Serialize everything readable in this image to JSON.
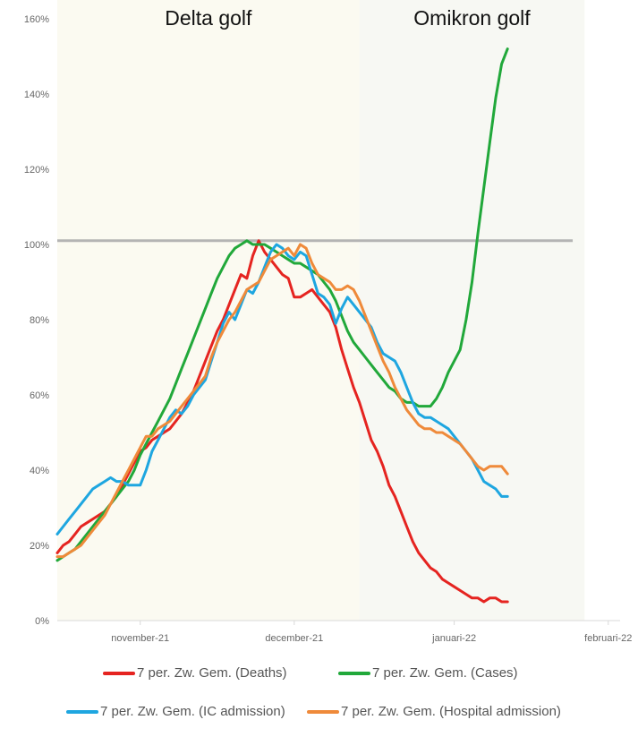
{
  "chart_data": {
    "type": "line",
    "regions": [
      {
        "label": "Delta golf",
        "x_start": 0,
        "x_end": 51,
        "color": "#fbfaf1"
      },
      {
        "label": "Omikron golf",
        "x_start": 51,
        "x_end": 89,
        "color": "#f7f8f3"
      }
    ],
    "x_ticks": [
      {
        "x": 14,
        "label": "november-21"
      },
      {
        "x": 40,
        "label": "december-21"
      },
      {
        "x": 67,
        "label": "januari-22"
      },
      {
        "x": 93,
        "label": "februari-22"
      }
    ],
    "x_range": [
      0,
      95
    ],
    "ylim": [
      0,
      165
    ],
    "y_ticks": [
      {
        "value": 0,
        "label": "0%"
      },
      {
        "value": 20,
        "label": "20%"
      },
      {
        "value": 40,
        "label": "40%"
      },
      {
        "value": 60,
        "label": "60%"
      },
      {
        "value": 80,
        "label": "80%"
      },
      {
        "value": 100,
        "label": "100%"
      },
      {
        "value": 120,
        "label": "120%"
      },
      {
        "value": 140,
        "label": "140%"
      },
      {
        "value": 160,
        "label": "160%"
      }
    ],
    "reference_line": {
      "y": 101,
      "x_start": 0,
      "x_end": 87,
      "color": "#b4b4b4"
    },
    "series": [
      {
        "name": "7 per. Zw. Gem. (Deaths)",
        "color": "#e52420",
        "points": [
          [
            0,
            18
          ],
          [
            1,
            20
          ],
          [
            2,
            21
          ],
          [
            3,
            23
          ],
          [
            4,
            25
          ],
          [
            5,
            26
          ],
          [
            6,
            27
          ],
          [
            7,
            28
          ],
          [
            8,
            29
          ],
          [
            9,
            31
          ],
          [
            10,
            33
          ],
          [
            11,
            36
          ],
          [
            12,
            39
          ],
          [
            13,
            42
          ],
          [
            14,
            45
          ],
          [
            15,
            46
          ],
          [
            16,
            48
          ],
          [
            17,
            49
          ],
          [
            18,
            50
          ],
          [
            19,
            51
          ],
          [
            20,
            53
          ],
          [
            21,
            55
          ],
          [
            22,
            58
          ],
          [
            23,
            61
          ],
          [
            24,
            65
          ],
          [
            25,
            69
          ],
          [
            26,
            73
          ],
          [
            27,
            77
          ],
          [
            28,
            80
          ],
          [
            29,
            84
          ],
          [
            30,
            88
          ],
          [
            31,
            92
          ],
          [
            32,
            91
          ],
          [
            33,
            97
          ],
          [
            34,
            101
          ],
          [
            35,
            98
          ],
          [
            36,
            96
          ],
          [
            37,
            94
          ],
          [
            38,
            92
          ],
          [
            39,
            91
          ],
          [
            40,
            86
          ],
          [
            41,
            86
          ],
          [
            42,
            87
          ],
          [
            43,
            88
          ],
          [
            44,
            86
          ],
          [
            45,
            84
          ],
          [
            46,
            82
          ],
          [
            47,
            78
          ],
          [
            48,
            72
          ],
          [
            49,
            67
          ],
          [
            50,
            62
          ],
          [
            51,
            58
          ],
          [
            52,
            53
          ],
          [
            53,
            48
          ],
          [
            54,
            45
          ],
          [
            55,
            41
          ],
          [
            56,
            36
          ],
          [
            57,
            33
          ],
          [
            58,
            29
          ],
          [
            59,
            25
          ],
          [
            60,
            21
          ],
          [
            61,
            18
          ],
          [
            62,
            16
          ],
          [
            63,
            14
          ],
          [
            64,
            13
          ],
          [
            65,
            11
          ],
          [
            66,
            10
          ],
          [
            67,
            9
          ],
          [
            68,
            8
          ],
          [
            69,
            7
          ],
          [
            70,
            6
          ],
          [
            71,
            6
          ],
          [
            72,
            5
          ],
          [
            73,
            6
          ],
          [
            74,
            6
          ],
          [
            75,
            5
          ],
          [
            76,
            5
          ]
        ]
      },
      {
        "name": "7 per. Zw. Gem. (Cases)",
        "color": "#21a83a",
        "points": [
          [
            0,
            16
          ],
          [
            1,
            17
          ],
          [
            2,
            18
          ],
          [
            3,
            19
          ],
          [
            4,
            21
          ],
          [
            5,
            23
          ],
          [
            6,
            25
          ],
          [
            7,
            27
          ],
          [
            8,
            29
          ],
          [
            9,
            31
          ],
          [
            10,
            33
          ],
          [
            11,
            35
          ],
          [
            12,
            37
          ],
          [
            13,
            40
          ],
          [
            14,
            44
          ],
          [
            15,
            47
          ],
          [
            16,
            50
          ],
          [
            17,
            53
          ],
          [
            18,
            56
          ],
          [
            19,
            59
          ],
          [
            20,
            63
          ],
          [
            21,
            67
          ],
          [
            22,
            71
          ],
          [
            23,
            75
          ],
          [
            24,
            79
          ],
          [
            25,
            83
          ],
          [
            26,
            87
          ],
          [
            27,
            91
          ],
          [
            28,
            94
          ],
          [
            29,
            97
          ],
          [
            30,
            99
          ],
          [
            31,
            100
          ],
          [
            32,
            101
          ],
          [
            33,
            100
          ],
          [
            34,
            100
          ],
          [
            35,
            100
          ],
          [
            36,
            99
          ],
          [
            37,
            98
          ],
          [
            38,
            97
          ],
          [
            39,
            96
          ],
          [
            40,
            95
          ],
          [
            41,
            95
          ],
          [
            42,
            94
          ],
          [
            43,
            93
          ],
          [
            44,
            92
          ],
          [
            45,
            90
          ],
          [
            46,
            88
          ],
          [
            47,
            85
          ],
          [
            48,
            81
          ],
          [
            49,
            77
          ],
          [
            50,
            74
          ],
          [
            51,
            72
          ],
          [
            52,
            70
          ],
          [
            53,
            68
          ],
          [
            54,
            66
          ],
          [
            55,
            64
          ],
          [
            56,
            62
          ],
          [
            57,
            61
          ],
          [
            58,
            59
          ],
          [
            59,
            58
          ],
          [
            60,
            58
          ],
          [
            61,
            57
          ],
          [
            62,
            57
          ],
          [
            63,
            57
          ],
          [
            64,
            59
          ],
          [
            65,
            62
          ],
          [
            66,
            66
          ],
          [
            67,
            69
          ],
          [
            68,
            72
          ],
          [
            69,
            80
          ],
          [
            70,
            90
          ],
          [
            71,
            103
          ],
          [
            72,
            115
          ],
          [
            73,
            127
          ],
          [
            74,
            139
          ],
          [
            75,
            148
          ],
          [
            76,
            152
          ]
        ]
      },
      {
        "name": "7 per. Zw. Gem. (IC admission)",
        "color": "#1ea6e0",
        "points": [
          [
            0,
            23
          ],
          [
            1,
            25
          ],
          [
            2,
            27
          ],
          [
            3,
            29
          ],
          [
            4,
            31
          ],
          [
            5,
            33
          ],
          [
            6,
            35
          ],
          [
            7,
            36
          ],
          [
            8,
            37
          ],
          [
            9,
            38
          ],
          [
            10,
            37
          ],
          [
            11,
            37
          ],
          [
            12,
            36
          ],
          [
            13,
            36
          ],
          [
            14,
            36
          ],
          [
            15,
            40
          ],
          [
            16,
            45
          ],
          [
            17,
            48
          ],
          [
            18,
            51
          ],
          [
            19,
            54
          ],
          [
            20,
            56
          ],
          [
            21,
            55
          ],
          [
            22,
            57
          ],
          [
            23,
            60
          ],
          [
            24,
            62
          ],
          [
            25,
            64
          ],
          [
            26,
            69
          ],
          [
            27,
            74
          ],
          [
            28,
            79
          ],
          [
            29,
            82
          ],
          [
            30,
            80
          ],
          [
            31,
            84
          ],
          [
            32,
            88
          ],
          [
            33,
            87
          ],
          [
            34,
            90
          ],
          [
            35,
            94
          ],
          [
            36,
            98
          ],
          [
            37,
            100
          ],
          [
            38,
            99
          ],
          [
            39,
            97
          ],
          [
            40,
            96
          ],
          [
            41,
            98
          ],
          [
            42,
            97
          ],
          [
            43,
            92
          ],
          [
            44,
            87
          ],
          [
            45,
            86
          ],
          [
            46,
            84
          ],
          [
            47,
            79
          ],
          [
            48,
            83
          ],
          [
            49,
            86
          ],
          [
            50,
            84
          ],
          [
            51,
            82
          ],
          [
            52,
            80
          ],
          [
            53,
            78
          ],
          [
            54,
            74
          ],
          [
            55,
            71
          ],
          [
            56,
            70
          ],
          [
            57,
            69
          ],
          [
            58,
            66
          ],
          [
            59,
            62
          ],
          [
            60,
            58
          ],
          [
            61,
            55
          ],
          [
            62,
            54
          ],
          [
            63,
            54
          ],
          [
            64,
            53
          ],
          [
            65,
            52
          ],
          [
            66,
            51
          ],
          [
            67,
            49
          ],
          [
            68,
            47
          ],
          [
            69,
            45
          ],
          [
            70,
            43
          ],
          [
            71,
            40
          ],
          [
            72,
            37
          ],
          [
            73,
            36
          ],
          [
            74,
            35
          ],
          [
            75,
            33
          ],
          [
            76,
            33
          ]
        ]
      },
      {
        "name": "7 per. Zw. Gem. (Hospital admission)",
        "color": "#ef8a3a",
        "points": [
          [
            0,
            17
          ],
          [
            1,
            17
          ],
          [
            2,
            18
          ],
          [
            3,
            19
          ],
          [
            4,
            20
          ],
          [
            5,
            22
          ],
          [
            6,
            24
          ],
          [
            7,
            26
          ],
          [
            8,
            28
          ],
          [
            9,
            31
          ],
          [
            10,
            34
          ],
          [
            11,
            37
          ],
          [
            12,
            40
          ],
          [
            13,
            43
          ],
          [
            14,
            46
          ],
          [
            15,
            49
          ],
          [
            16,
            49
          ],
          [
            17,
            51
          ],
          [
            18,
            52
          ],
          [
            19,
            53
          ],
          [
            20,
            55
          ],
          [
            21,
            57
          ],
          [
            22,
            59
          ],
          [
            23,
            61
          ],
          [
            24,
            63
          ],
          [
            25,
            65
          ],
          [
            26,
            70
          ],
          [
            27,
            74
          ],
          [
            28,
            77
          ],
          [
            29,
            80
          ],
          [
            30,
            82
          ],
          [
            31,
            85
          ],
          [
            32,
            88
          ],
          [
            33,
            89
          ],
          [
            34,
            90
          ],
          [
            35,
            93
          ],
          [
            36,
            96
          ],
          [
            37,
            97
          ],
          [
            38,
            98
          ],
          [
            39,
            99
          ],
          [
            40,
            97
          ],
          [
            41,
            100
          ],
          [
            42,
            99
          ],
          [
            43,
            95
          ],
          [
            44,
            92
          ],
          [
            45,
            91
          ],
          [
            46,
            90
          ],
          [
            47,
            88
          ],
          [
            48,
            88
          ],
          [
            49,
            89
          ],
          [
            50,
            88
          ],
          [
            51,
            85
          ],
          [
            52,
            81
          ],
          [
            53,
            77
          ],
          [
            54,
            73
          ],
          [
            55,
            69
          ],
          [
            56,
            66
          ],
          [
            57,
            62
          ],
          [
            58,
            59
          ],
          [
            59,
            56
          ],
          [
            60,
            54
          ],
          [
            61,
            52
          ],
          [
            62,
            51
          ],
          [
            63,
            51
          ],
          [
            64,
            50
          ],
          [
            65,
            50
          ],
          [
            66,
            49
          ],
          [
            67,
            48
          ],
          [
            68,
            47
          ],
          [
            69,
            45
          ],
          [
            70,
            43
          ],
          [
            71,
            41
          ],
          [
            72,
            40
          ],
          [
            73,
            41
          ],
          [
            74,
            41
          ],
          [
            75,
            41
          ],
          [
            76,
            39
          ]
        ]
      }
    ],
    "legend": [
      {
        "label": "7 per. Zw. Gem. (Deaths)",
        "color": "#e52420"
      },
      {
        "label": "7 per. Zw. Gem. (Cases)",
        "color": "#21a83a"
      },
      {
        "label": "7 per. Zw. Gem. (IC admission)",
        "color": "#1ea6e0"
      },
      {
        "label": "7 per. Zw. Gem. (Hospital admission)",
        "color": "#ef8a3a"
      }
    ],
    "legend_placement": "bottom",
    "grid": false
  }
}
